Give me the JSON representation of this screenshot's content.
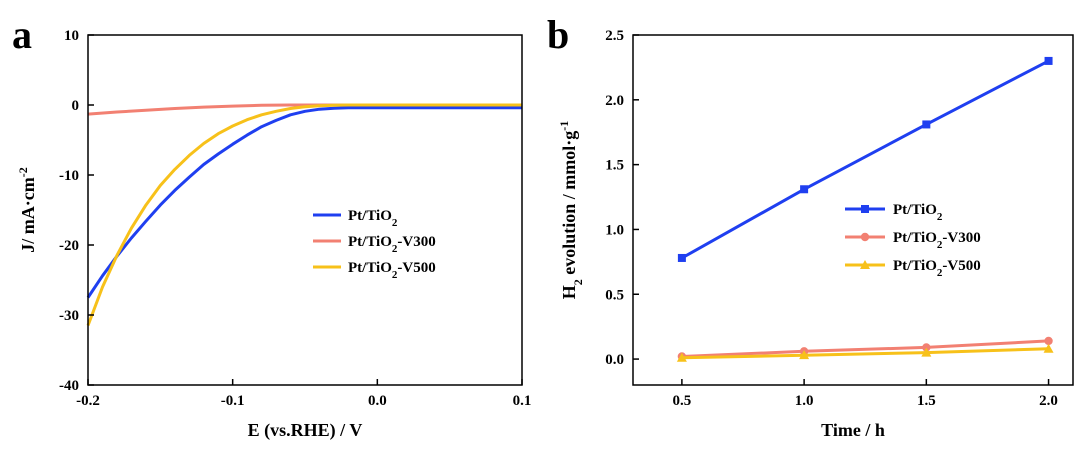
{
  "chart_data": [
    {
      "panel": "a",
      "type": "line",
      "xlabel": "E (vs.RHE) / V",
      "ylabel": "J/ mA·cm-2",
      "ylabel_parts": {
        "base": "J/ mA·cm",
        "sup": "-2"
      },
      "xlim": [
        -0.2,
        0.1
      ],
      "ylim": [
        -40,
        10
      ],
      "xticks": [
        "-0.2",
        "-0.1",
        "0.0",
        "0.1"
      ],
      "yticks": [
        "10",
        "0",
        "-10",
        "-20",
        "-30",
        "-40"
      ],
      "legend_position": "center-right",
      "series": [
        {
          "name": "Pt/TiO2",
          "label_parts": [
            "Pt/TiO",
            "2",
            ""
          ],
          "color": "#1f3ff0",
          "x": [
            -0.2,
            -0.19,
            -0.18,
            -0.17,
            -0.16,
            -0.15,
            -0.14,
            -0.13,
            -0.12,
            -0.11,
            -0.1,
            -0.09,
            -0.08,
            -0.07,
            -0.06,
            -0.05,
            -0.04,
            -0.03,
            -0.02,
            -0.01,
            0.0,
            0.05,
            0.1
          ],
          "y": [
            -27.5,
            -24.4,
            -21.6,
            -19.0,
            -16.6,
            -14.3,
            -12.2,
            -10.3,
            -8.5,
            -7.0,
            -5.6,
            -4.3,
            -3.1,
            -2.2,
            -1.4,
            -0.9,
            -0.6,
            -0.45,
            -0.4,
            -0.4,
            -0.4,
            -0.4,
            -0.4
          ]
        },
        {
          "name": "Pt/TiO2-V300",
          "label_parts": [
            "Pt/TiO",
            "2",
            "-V300"
          ],
          "color": "#f28072",
          "x": [
            -0.2,
            -0.18,
            -0.16,
            -0.14,
            -0.12,
            -0.1,
            -0.08,
            -0.06,
            -0.04,
            -0.02,
            0.0,
            0.05,
            0.1
          ],
          "y": [
            -1.3,
            -1.0,
            -0.75,
            -0.5,
            -0.3,
            -0.15,
            -0.05,
            0.0,
            0.0,
            0.0,
            0.0,
            0.0,
            0.0
          ]
        },
        {
          "name": "Pt/TiO2-V500",
          "label_parts": [
            "Pt/TiO",
            "2",
            "-V500"
          ],
          "color": "#f7c11a",
          "x": [
            -0.2,
            -0.19,
            -0.18,
            -0.17,
            -0.16,
            -0.15,
            -0.14,
            -0.13,
            -0.12,
            -0.11,
            -0.1,
            -0.09,
            -0.08,
            -0.07,
            -0.06,
            -0.05,
            -0.04,
            -0.03,
            -0.02,
            0.0,
            0.05,
            0.1
          ],
          "y": [
            -31.5,
            -26.0,
            -21.5,
            -17.6,
            -14.3,
            -11.5,
            -9.2,
            -7.2,
            -5.5,
            -4.1,
            -3.0,
            -2.1,
            -1.4,
            -0.9,
            -0.5,
            -0.25,
            -0.1,
            -0.05,
            0.0,
            0.0,
            0.0,
            0.0
          ]
        }
      ]
    },
    {
      "panel": "b",
      "type": "line",
      "xlabel": "Time / h",
      "ylabel": "H2 evolution / mmol·g-1",
      "ylabel_parts": {
        "pre": "H",
        "sub": "2",
        "mid": " evolution  / mmol·g",
        "sup": "-1"
      },
      "xlim": [
        0.3,
        2.1
      ],
      "ylim": [
        -0.2,
        2.5
      ],
      "xticks": [
        "0.5",
        "1.0",
        "1.5",
        "2.0"
      ],
      "yticks": [
        "2.5",
        "2.0",
        "1.5",
        "1.0",
        "0.5",
        "0.0"
      ],
      "legend_position": "center-right",
      "series": [
        {
          "name": "Pt/TiO2",
          "label_parts": [
            "Pt/TiO",
            "2",
            ""
          ],
          "color": "#1f3ff0",
          "marker": "square",
          "x": [
            0.5,
            1.0,
            1.5,
            2.0
          ],
          "y": [
            0.78,
            1.31,
            1.81,
            2.3
          ]
        },
        {
          "name": "Pt/TiO2-V300",
          "label_parts": [
            "Pt/TiO",
            "2",
            "-V300"
          ],
          "color": "#f28072",
          "marker": "circle",
          "x": [
            0.5,
            1.0,
            1.5,
            2.0
          ],
          "y": [
            0.02,
            0.06,
            0.09,
            0.14
          ]
        },
        {
          "name": "Pt/TiO2-V500",
          "label_parts": [
            "Pt/TiO",
            "2",
            "-V500"
          ],
          "color": "#f7c11a",
          "marker": "triangle",
          "x": [
            0.5,
            1.0,
            1.5,
            2.0
          ],
          "y": [
            0.01,
            0.03,
            0.05,
            0.08
          ]
        }
      ]
    }
  ],
  "panel_labels": [
    "a",
    "b"
  ]
}
